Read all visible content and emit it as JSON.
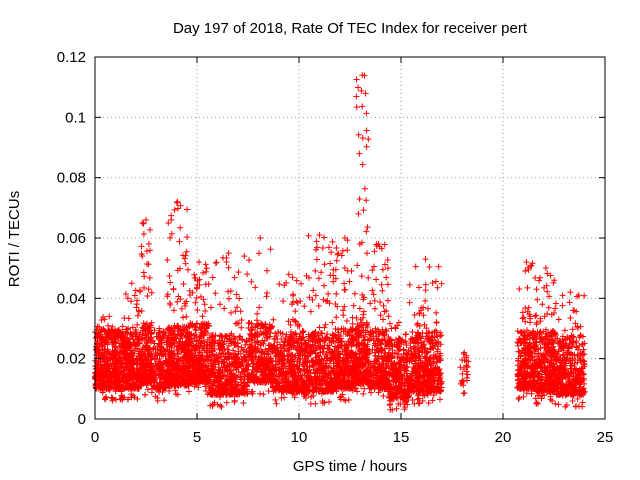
{
  "chart_data": {
    "type": "scatter",
    "title": "Day 197 of 2018, Rate Of TEC Index for receiver pert",
    "xlabel": "GPS time / hours",
    "ylabel": "ROTI / TECUs",
    "xlim": [
      0,
      25
    ],
    "ylim": [
      0,
      0.12
    ],
    "xticks": [
      0,
      5,
      10,
      15,
      20,
      25
    ],
    "yticks": [
      0,
      0.02,
      0.04,
      0.06,
      0.08,
      0.1,
      0.12
    ],
    "xtick_labels": [
      "0",
      "5",
      "10",
      "15",
      "20",
      "25"
    ],
    "ytick_labels": [
      "0",
      "0.02",
      "0.04",
      "0.06",
      "0.08",
      "0.1",
      "0.12"
    ],
    "grid": true,
    "marker": "+",
    "color": "#ff0000",
    "series": [
      {
        "name": "ROTI",
        "clusters": [
          {
            "x_start": 0.0,
            "x_end": 1.4,
            "y_min": 0.006,
            "y_max": 0.034,
            "n": 520
          },
          {
            "x_start": 1.4,
            "x_end": 2.2,
            "y_min": 0.006,
            "y_max": 0.045,
            "n": 300
          },
          {
            "x_start": 2.2,
            "x_end": 2.8,
            "y_min": 0.008,
            "y_max": 0.066,
            "n": 260
          },
          {
            "x_start": 2.8,
            "x_end": 3.5,
            "y_min": 0.006,
            "y_max": 0.03,
            "n": 160
          },
          {
            "x_start": 3.5,
            "x_end": 4.6,
            "y_min": 0.007,
            "y_max": 0.072,
            "n": 450
          },
          {
            "x_start": 4.6,
            "x_end": 5.6,
            "y_min": 0.008,
            "y_max": 0.052,
            "n": 340
          },
          {
            "x_start": 5.6,
            "x_end": 7.5,
            "y_min": 0.004,
            "y_max": 0.055,
            "n": 520
          },
          {
            "x_start": 7.5,
            "x_end": 8.7,
            "y_min": 0.008,
            "y_max": 0.06,
            "n": 300
          },
          {
            "x_start": 8.7,
            "x_end": 10.3,
            "y_min": 0.005,
            "y_max": 0.048,
            "n": 460
          },
          {
            "x_start": 10.3,
            "x_end": 11.7,
            "y_min": 0.005,
            "y_max": 0.061,
            "n": 420
          },
          {
            "x_start": 11.7,
            "x_end": 12.8,
            "y_min": 0.006,
            "y_max": 0.06,
            "n": 380
          },
          {
            "x_start": 12.8,
            "x_end": 13.4,
            "y_min": 0.008,
            "y_max": 0.114,
            "n": 240
          },
          {
            "x_start": 13.4,
            "x_end": 14.4,
            "y_min": 0.006,
            "y_max": 0.058,
            "n": 300
          },
          {
            "x_start": 14.4,
            "x_end": 15.4,
            "y_min": 0.003,
            "y_max": 0.032,
            "n": 300
          },
          {
            "x_start": 15.4,
            "x_end": 17.0,
            "y_min": 0.005,
            "y_max": 0.053,
            "n": 480
          },
          {
            "x_start": 17.9,
            "x_end": 18.3,
            "y_min": 0.008,
            "y_max": 0.022,
            "n": 24
          },
          {
            "x_start": 20.7,
            "x_end": 21.6,
            "y_min": 0.006,
            "y_max": 0.052,
            "n": 300
          },
          {
            "x_start": 21.6,
            "x_end": 22.6,
            "y_min": 0.005,
            "y_max": 0.05,
            "n": 360
          },
          {
            "x_start": 22.6,
            "x_end": 24.0,
            "y_min": 0.004,
            "y_max": 0.042,
            "n": 380
          }
        ]
      }
    ]
  }
}
